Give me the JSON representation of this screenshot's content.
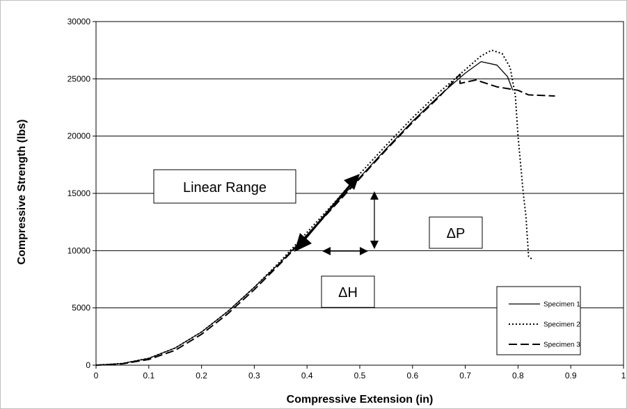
{
  "chart_data": {
    "type": "line",
    "xlabel": "Compressive Extension (in)",
    "ylabel": "Compressive Strength (lbs)",
    "xlim": [
      0,
      1
    ],
    "ylim": [
      0,
      30000
    ],
    "x_ticks": [
      "0",
      "0.1",
      "0.2",
      "0.3",
      "0.4",
      "0.5",
      "0.6",
      "0.7",
      "0.8",
      "0.9",
      "1"
    ],
    "y_ticks": [
      "0",
      "5000",
      "10000",
      "15000",
      "20000",
      "25000",
      "30000"
    ],
    "grid": "horizontal",
    "legend_position": "bottom-right",
    "annotations": {
      "linear_range": "Linear Range",
      "delta_p": "ΔP",
      "delta_h": "ΔH"
    },
    "series": [
      {
        "name": "Specimen 1",
        "style": "solid",
        "x": [
          0,
          0.05,
          0.1,
          0.15,
          0.2,
          0.25,
          0.3,
          0.35,
          0.4,
          0.45,
          0.5,
          0.55,
          0.6,
          0.65,
          0.7,
          0.73,
          0.76,
          0.78,
          0.79
        ],
        "y": [
          0,
          150,
          600,
          1500,
          2900,
          4700,
          6800,
          9000,
          11400,
          13900,
          16400,
          18900,
          21300,
          23500,
          25500,
          26500,
          26200,
          25200,
          24000
        ]
      },
      {
        "name": "Specimen 2",
        "style": "dotted",
        "x": [
          0,
          0.05,
          0.1,
          0.15,
          0.2,
          0.25,
          0.3,
          0.35,
          0.4,
          0.45,
          0.5,
          0.55,
          0.6,
          0.65,
          0.7,
          0.73,
          0.75,
          0.77,
          0.785,
          0.795,
          0.8,
          0.805,
          0.81,
          0.815,
          0.82,
          0.828
        ],
        "y": [
          0,
          150,
          600,
          1500,
          2900,
          4700,
          6800,
          9100,
          11600,
          14100,
          16700,
          19200,
          21600,
          23800,
          25800,
          27000,
          27500,
          27200,
          26000,
          23500,
          20000,
          17500,
          15000,
          13000,
          9500,
          9200
        ]
      },
      {
        "name": "Specimen 3",
        "style": "dashed",
        "x": [
          0,
          0.05,
          0.1,
          0.15,
          0.2,
          0.25,
          0.3,
          0.35,
          0.4,
          0.45,
          0.5,
          0.55,
          0.6,
          0.65,
          0.69,
          0.69,
          0.72,
          0.76,
          0.8,
          0.82,
          0.87
        ],
        "y": [
          0,
          120,
          500,
          1300,
          2700,
          4500,
          6600,
          8900,
          11300,
          13800,
          16300,
          18800,
          21200,
          23400,
          25400,
          24600,
          24900,
          24300,
          24000,
          23600,
          23500
        ]
      }
    ]
  }
}
